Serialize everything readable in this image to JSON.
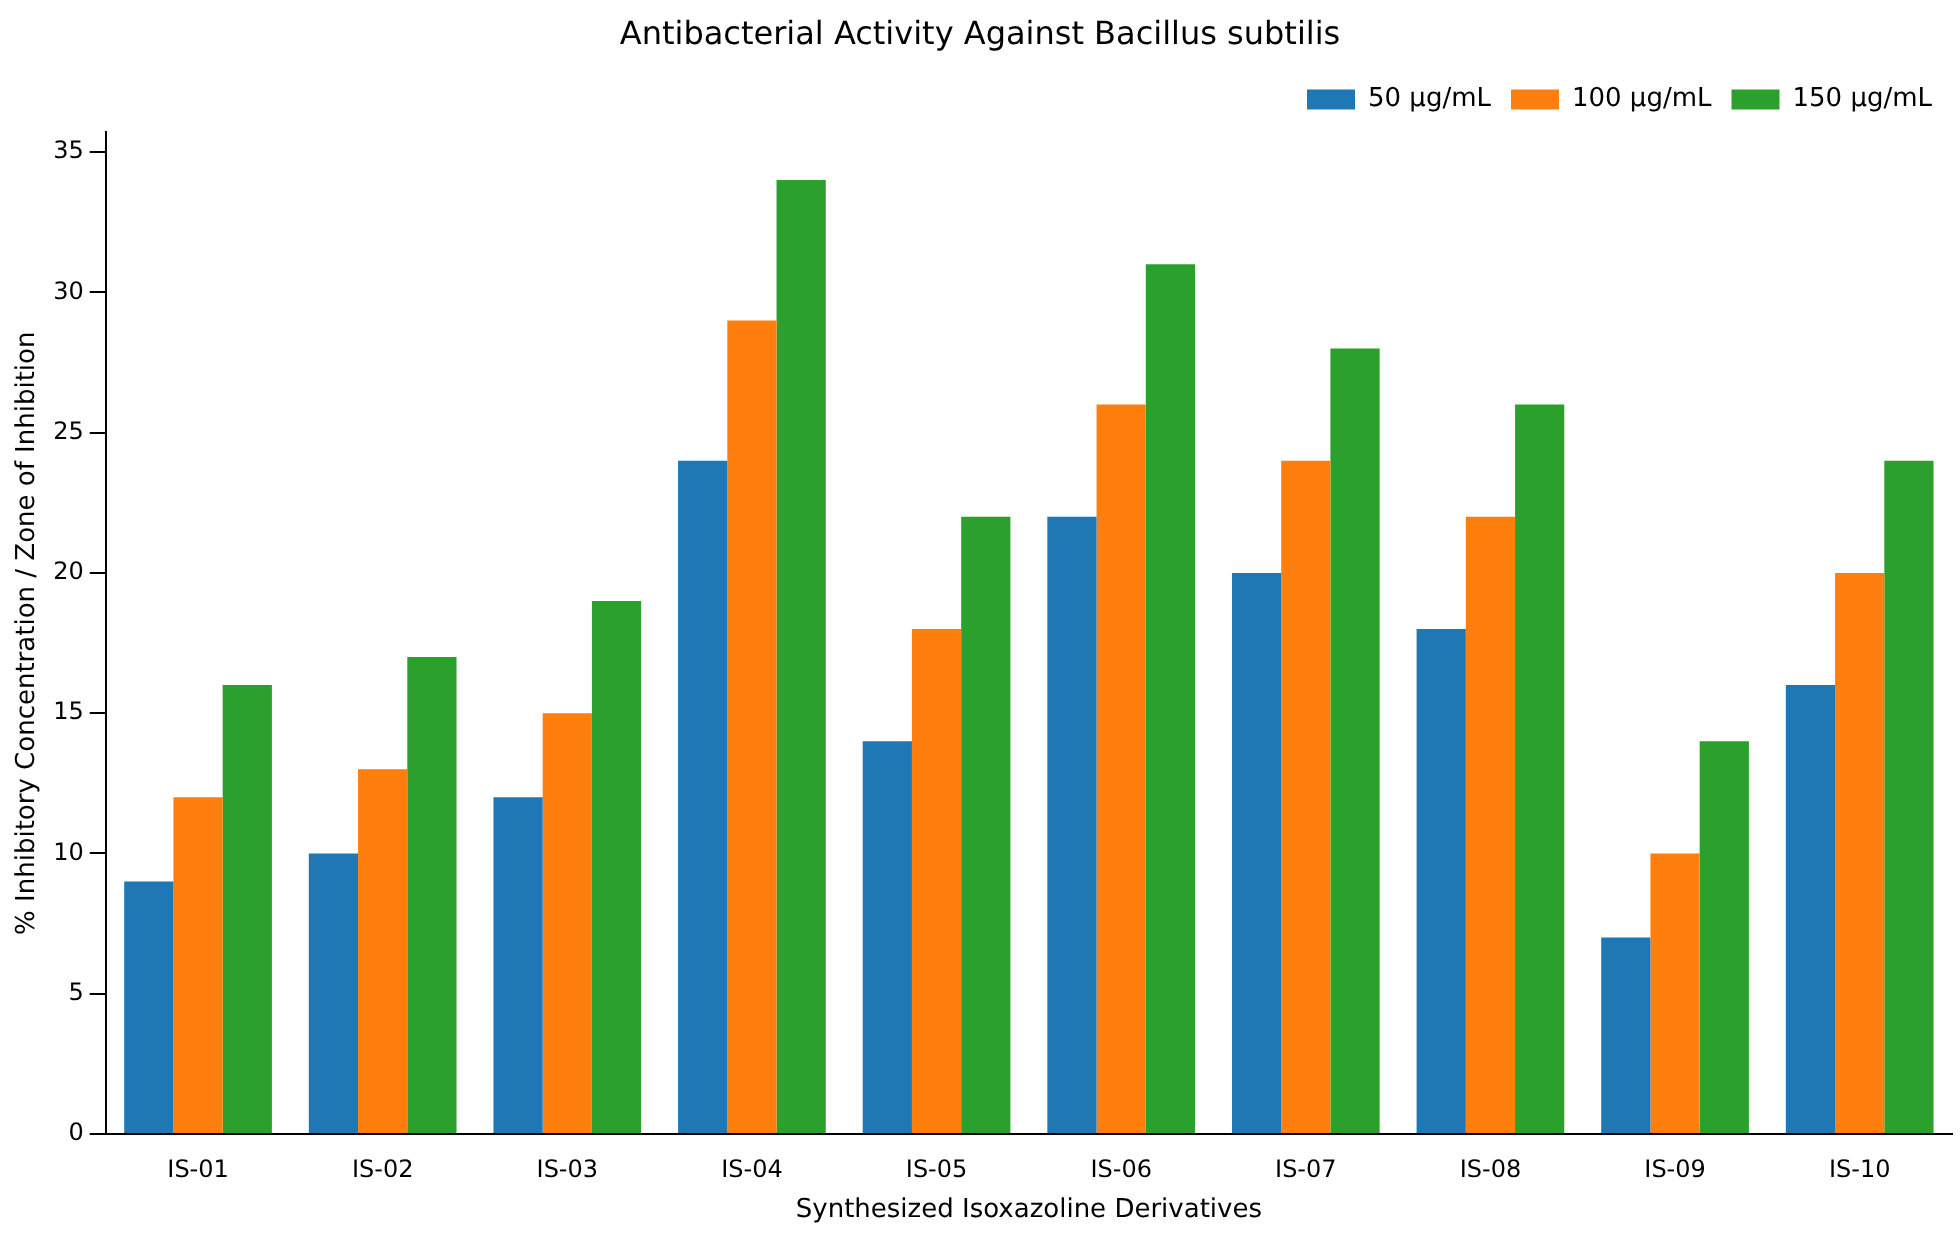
{
  "chart_data": {
    "type": "bar",
    "title": "Antibacterial Activity Against Bacillus subtilis",
    "xlabel": "Synthesized Isoxazoline Derivatives",
    "ylabel": "% Inhibitory Concentration / Zone of Inhibition",
    "categories": [
      "IS-01",
      "IS-02",
      "IS-03",
      "IS-04",
      "IS-05",
      "IS-06",
      "IS-07",
      "IS-08",
      "IS-09",
      "IS-10"
    ],
    "series": [
      {
        "name": "50 µg/mL",
        "color": "#1f77b4",
        "values": [
          9,
          10,
          12,
          24,
          14,
          22,
          20,
          18,
          7,
          16
        ]
      },
      {
        "name": "100 µg/mL",
        "color": "#ff7f0e",
        "values": [
          12,
          13,
          15,
          29,
          18,
          26,
          24,
          22,
          10,
          20
        ]
      },
      {
        "name": "150 µg/mL",
        "color": "#2ca02c",
        "values": [
          16,
          17,
          19,
          34,
          22,
          31,
          28,
          26,
          14,
          24
        ]
      }
    ],
    "ylim": [
      0,
      35.7
    ],
    "yticks": [
      0,
      5,
      10,
      15,
      20,
      25,
      30,
      35
    ],
    "grid": false,
    "legend": "top right"
  }
}
